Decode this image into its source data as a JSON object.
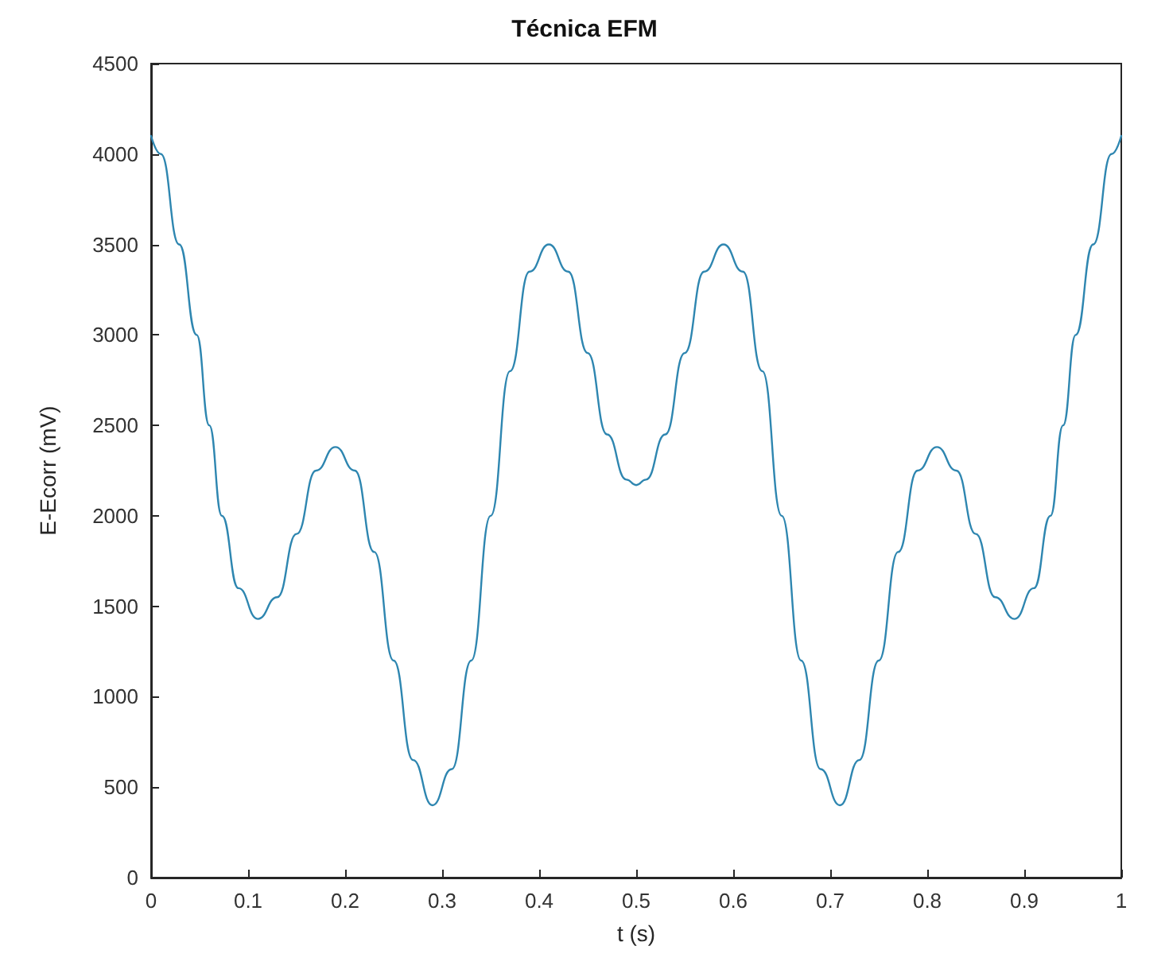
{
  "chart_data": {
    "type": "line",
    "title": "Técnica EFM",
    "xlabel": "t (s)",
    "ylabel": "E-Ecorr (mV)",
    "x": [
      0,
      0.01,
      0.029,
      0.047,
      0.06,
      0.073,
      0.09,
      0.11,
      0.13,
      0.15,
      0.17,
      0.19,
      0.21,
      0.23,
      0.25,
      0.27,
      0.29,
      0.31,
      0.33,
      0.35,
      0.37,
      0.39,
      0.41,
      0.43,
      0.45,
      0.47,
      0.49,
      0.5,
      0.51,
      0.53,
      0.55,
      0.57,
      0.59,
      0.61,
      0.63,
      0.65,
      0.67,
      0.69,
      0.71,
      0.73,
      0.75,
      0.77,
      0.79,
      0.81,
      0.83,
      0.85,
      0.87,
      0.89,
      0.91,
      0.927,
      0.94,
      0.953,
      0.971,
      0.99,
      1
    ],
    "series": [
      {
        "color": "#2e86b0",
        "values": [
          4100,
          4000,
          3500,
          3000,
          2500,
          2000,
          1600,
          1430,
          1550,
          1900,
          2250,
          2380,
          2250,
          1800,
          1200,
          650,
          400,
          600,
          1200,
          2000,
          2800,
          3350,
          3500,
          3350,
          2900,
          2450,
          2200,
          2170,
          2200,
          2450,
          2900,
          3350,
          3500,
          3350,
          2800,
          2000,
          1200,
          600,
          400,
          650,
          1200,
          1800,
          2250,
          2380,
          2250,
          1900,
          1550,
          1430,
          1600,
          2000,
          2500,
          3000,
          3500,
          4000,
          4100
        ]
      }
    ],
    "xlim": [
      0,
      1
    ],
    "xticks": [
      0,
      0.1,
      0.2,
      0.3,
      0.4,
      0.5,
      0.6,
      0.7,
      0.8,
      0.9,
      1
    ],
    "ylim": [
      0,
      4500
    ],
    "yticks": [
      0,
      500,
      1000,
      1500,
      2000,
      2500,
      3000,
      3500,
      4000,
      4500
    ],
    "grid": false,
    "marker": "none",
    "line_style": "solid"
  }
}
